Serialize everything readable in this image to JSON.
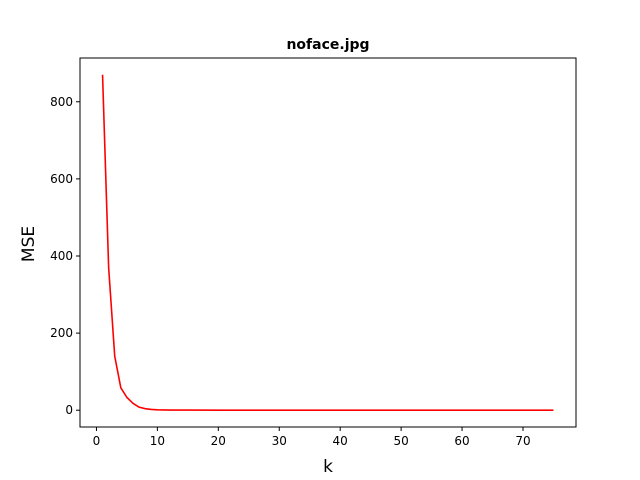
{
  "chart_data": {
    "type": "line",
    "title": "noface.jpg",
    "xlabel": "k",
    "ylabel": "MSE",
    "xlim": [
      -2.7,
      78.7
    ],
    "ylim": [
      -43.5,
      913.5
    ],
    "xticks": [
      0,
      10,
      20,
      30,
      40,
      50,
      60,
      70
    ],
    "yticks": [
      0,
      200,
      400,
      600,
      800
    ],
    "grid": false,
    "legend": "none",
    "series": [
      {
        "color": "#ff0000",
        "x": [
          1,
          2,
          3,
          4,
          5,
          6,
          7,
          8,
          9,
          10,
          12,
          15,
          20,
          30,
          40,
          50,
          60,
          70,
          75
        ],
        "y": [
          870,
          370,
          140,
          58,
          33,
          18,
          8,
          4,
          2,
          1,
          0.5,
          0.3,
          0.2,
          0.1,
          0.05,
          0.03,
          0.02,
          0.01,
          0
        ]
      }
    ]
  }
}
